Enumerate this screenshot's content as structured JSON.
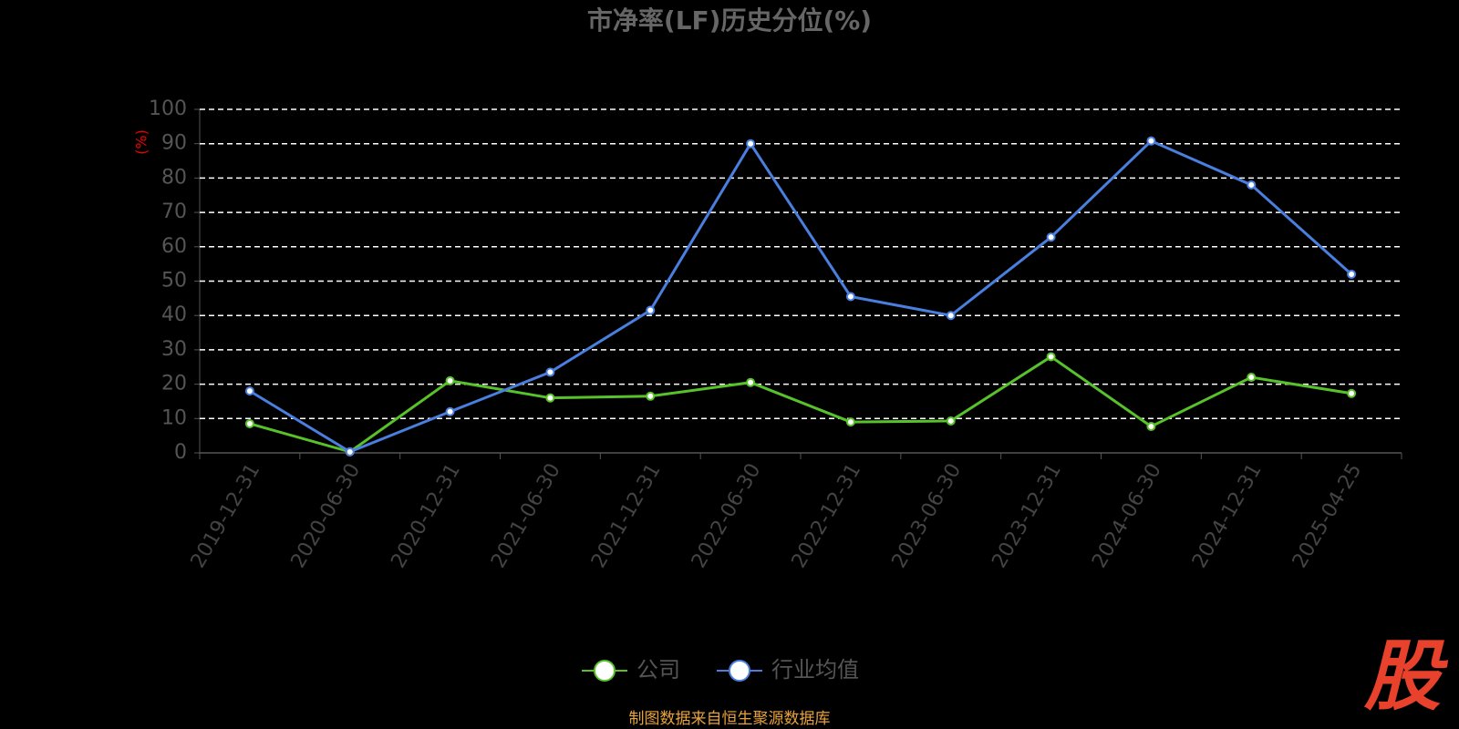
{
  "chart_data": {
    "type": "line",
    "title": "市净率(LF)历史分位(%)",
    "y_label": "(%)",
    "categories": [
      "2019-12-31",
      "2020-06-30",
      "2020-12-31",
      "2021-06-30",
      "2021-12-31",
      "2022-06-30",
      "2022-12-31",
      "2023-06-30",
      "2023-12-31",
      "2024-06-30",
      "2024-12-31",
      "2025-04-25"
    ],
    "series": [
      {
        "name": "公司",
        "color": "#58c22a",
        "values": [
          8.5,
          0.3,
          21,
          16,
          16.5,
          20.5,
          9,
          9.3,
          28,
          7.7,
          22,
          17.3
        ]
      },
      {
        "name": "行业均值",
        "color": "#4a7fdf",
        "values": [
          18,
          0.3,
          12,
          23.5,
          41.5,
          90,
          45.5,
          40,
          62.8,
          90.8,
          78,
          52
        ]
      }
    ],
    "ylim": [
      0,
      100
    ],
    "yticks": [
      0,
      10,
      20,
      30,
      40,
      50,
      60,
      70,
      80,
      90,
      100
    ],
    "grid": true,
    "legend": "bottom",
    "source": "制图数据来自恒生聚源数据库",
    "watermark": "股"
  }
}
